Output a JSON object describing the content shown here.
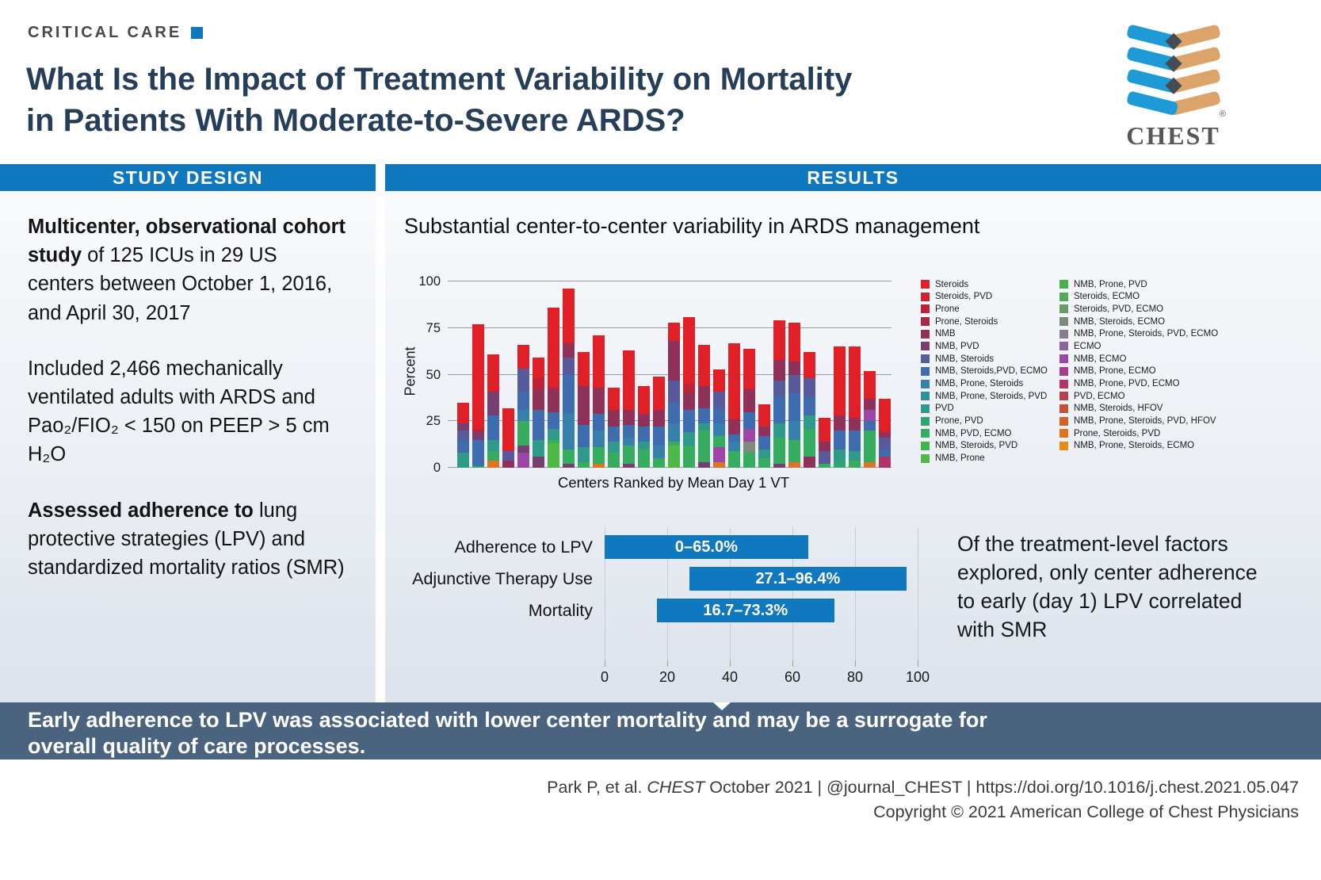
{
  "page": {
    "kicker": "CRITICAL CARE",
    "title_lines": [
      "What Is the Impact of Treatment Variability on Mortality",
      "in Patients With Moderate-to-Severe ARDS?"
    ],
    "logo_text": "CHEST",
    "logo_reg": "®"
  },
  "sections": {
    "study_design_header": "STUDY DESIGN",
    "results_header": "RESULTS"
  },
  "study_design": {
    "paragraphs": [
      {
        "bold": "Multicenter, observational cohort study",
        "rest": " of 125 ICUs in 29 US centers between October 1, 2016, and April 30, 2017"
      },
      {
        "bold": "",
        "rest": "Included 2,466 mechanically ventilated adults with ARDS and Pao₂/FIO₂ < 150 on PEEP > 5 cm H₂O"
      },
      {
        "bold": "Assessed adherence to",
        "rest": " lung protective strategies (LPV) and standardized mortality ratios (SMR)"
      }
    ]
  },
  "results": {
    "chart_title": "Substantial center-to-center variability in ARDS management",
    "conclusion_text": "Of the treatment-level factors explored, only center adherence to early (day 1) LPV correlated with SMR"
  },
  "banner": {
    "lines": [
      "Early adherence to LPV was associated with lower center mortality and may be a surrogate for",
      "overall quality of care processes."
    ]
  },
  "footer": {
    "citation_pre": "Park P, et al. ",
    "citation_journal": "CHEST",
    "citation_post": " October 2021   |   @journal_CHEST   |   https://doi.org/10.1016/j.chest.2021.05.047",
    "copyright": "Copyright © 2021 American College of Chest Physicians"
  },
  "colors": {
    "header_blue": "#0f78be",
    "banner_slate": "#4a6480",
    "range_bar_blue": "#0f78be",
    "title_navy": "#263e57",
    "logo_blue": "#1e9ad6",
    "logo_tan": "#dca36b"
  },
  "chart_data": [
    {
      "type": "stacked-bar",
      "title": "Substantial center-to-center variability in ARDS management",
      "xlabel": "Centers Ranked by Mean Day 1 VT",
      "ylabel": "Percent",
      "ylim": [
        0,
        100
      ],
      "yticks": [
        0,
        25,
        50,
        75,
        100
      ],
      "grid": true,
      "legend_position": "right",
      "n_centers": 29,
      "bar_totals": [
        35,
        77,
        61,
        32,
        66,
        59,
        86,
        96,
        62,
        71,
        43,
        63,
        44,
        49,
        78,
        81,
        66,
        53,
        67,
        64,
        34,
        79,
        78,
        62,
        27,
        65,
        65,
        52,
        37
      ],
      "bars": [
        {
          "segments": [
            [
              "#2f9a8a",
              8
            ],
            [
              "#3f6cae",
              7
            ],
            [
              "#595a9b",
              5
            ],
            [
              "#75406f",
              4
            ],
            [
              "#e01f26",
              11
            ]
          ]
        },
        {
          "segments": [
            [
              "#35ac5e",
              1
            ],
            [
              "#3f6cae",
              14
            ],
            [
              "#75406f",
              4
            ],
            [
              "#bc2339",
              2
            ],
            [
              "#e01f26",
              56
            ]
          ]
        },
        {
          "segments": [
            [
              "#de7423",
              4
            ],
            [
              "#35ac5e",
              5
            ],
            [
              "#2f9a8a",
              6
            ],
            [
              "#3f6cae",
              13
            ],
            [
              "#75406f",
              13
            ],
            [
              "#e01f26",
              20
            ]
          ]
        },
        {
          "segments": [
            [
              "#8f3158",
              4
            ],
            [
              "#595a9b",
              5
            ],
            [
              "#e01f26",
              23
            ]
          ]
        },
        {
          "segments": [
            [
              "#9c46a5",
              8
            ],
            [
              "#75406f",
              4
            ],
            [
              "#35ac5e",
              13
            ],
            [
              "#3780ab",
              6
            ],
            [
              "#3f6cae",
              10
            ],
            [
              "#595a9b",
              12
            ],
            [
              "#e01f26",
              13
            ]
          ]
        },
        {
          "segments": [
            [
              "#75406f",
              6
            ],
            [
              "#2f9a8a",
              9
            ],
            [
              "#3f6cae",
              16
            ],
            [
              "#8f3158",
              11
            ],
            [
              "#bc2339",
              6
            ],
            [
              "#e01f26",
              11
            ]
          ]
        },
        {
          "segments": [
            [
              "#4eba45",
              13
            ],
            [
              "#35ac5e",
              2
            ],
            [
              "#2f9a8a",
              6
            ],
            [
              "#3f6cae",
              9
            ],
            [
              "#8f3158",
              12
            ],
            [
              "#bc2339",
              1
            ],
            [
              "#e01f26",
              43
            ]
          ]
        },
        {
          "segments": [
            [
              "#75406f",
              2
            ],
            [
              "#35ac5e",
              8
            ],
            [
              "#3780ab",
              19
            ],
            [
              "#3f6cae",
              21
            ],
            [
              "#595a9b",
              9
            ],
            [
              "#8f3158",
              8
            ],
            [
              "#e01f26",
              29
            ]
          ]
        },
        {
          "segments": [
            [
              "#35ac5e",
              3
            ],
            [
              "#2f9a8a",
              8
            ],
            [
              "#3f6cae",
              12
            ],
            [
              "#8f3158",
              21
            ],
            [
              "#e01f26",
              18
            ]
          ]
        },
        {
          "segments": [
            [
              "#de7423",
              2
            ],
            [
              "#35ac5e",
              9
            ],
            [
              "#3780ab",
              9
            ],
            [
              "#3f6cae",
              9
            ],
            [
              "#8f3158",
              14
            ],
            [
              "#e01f26",
              28
            ]
          ]
        },
        {
          "segments": [
            [
              "#35ac5e",
              8
            ],
            [
              "#2f9a8a",
              6
            ],
            [
              "#3f6cae",
              8
            ],
            [
              "#8f3158",
              9
            ],
            [
              "#e01f26",
              12
            ]
          ]
        },
        {
          "segments": [
            [
              "#75406f",
              2
            ],
            [
              "#35ac5e",
              10
            ],
            [
              "#3780ab",
              4
            ],
            [
              "#3f6cae",
              7
            ],
            [
              "#8f3158",
              8
            ],
            [
              "#e01f26",
              32
            ]
          ]
        },
        {
          "segments": [
            [
              "#35ac5e",
              10
            ],
            [
              "#2f9a8a",
              4
            ],
            [
              "#3f6cae",
              8
            ],
            [
              "#8f3158",
              7
            ],
            [
              "#e01f26",
              15
            ]
          ]
        },
        {
          "segments": [
            [
              "#35ac5e",
              5
            ],
            [
              "#3780ab",
              7
            ],
            [
              "#3f6cae",
              10
            ],
            [
              "#8f3158",
              9
            ],
            [
              "#e01f26",
              18
            ]
          ]
        },
        {
          "segments": [
            [
              "#4eba45",
              12
            ],
            [
              "#35ac5e",
              2
            ],
            [
              "#3780ab",
              10
            ],
            [
              "#3f6cae",
              11
            ],
            [
              "#595a9b",
              12
            ],
            [
              "#8f3158",
              21
            ],
            [
              "#e01f26",
              10
            ]
          ]
        },
        {
          "segments": [
            [
              "#35ac5e",
              12
            ],
            [
              "#2f9a8a",
              7
            ],
            [
              "#3f6cae",
              12
            ],
            [
              "#8f3158",
              9
            ],
            [
              "#bc2339",
              5
            ],
            [
              "#e01f26",
              36
            ]
          ]
        },
        {
          "segments": [
            [
              "#75406f",
              3
            ],
            [
              "#35ac5e",
              17
            ],
            [
              "#2f9a8a",
              4
            ],
            [
              "#3f6cae",
              8
            ],
            [
              "#8f3158",
              12
            ],
            [
              "#e01f26",
              22
            ]
          ]
        },
        {
          "segments": [
            [
              "#de7423",
              3
            ],
            [
              "#9c46a5",
              8
            ],
            [
              "#35ac5e",
              6
            ],
            [
              "#3780ab",
              7
            ],
            [
              "#3f6cae",
              8
            ],
            [
              "#595a9b",
              9
            ],
            [
              "#e01f26",
              12
            ]
          ]
        },
        {
          "segments": [
            [
              "#35ac5e",
              9
            ],
            [
              "#3780ab",
              5
            ],
            [
              "#3f6cae",
              4
            ],
            [
              "#8f3158",
              8
            ],
            [
              "#e01f26",
              41
            ]
          ]
        },
        {
          "segments": [
            [
              "#35ac5e",
              8
            ],
            [
              "#7c8c78",
              6
            ],
            [
              "#9c46a5",
              7
            ],
            [
              "#3f6cae",
              9
            ],
            [
              "#8f3158",
              12
            ],
            [
              "#e01f26",
              22
            ]
          ]
        },
        {
          "segments": [
            [
              "#35ac5e",
              5
            ],
            [
              "#2f9a8a",
              5
            ],
            [
              "#3f6cae",
              7
            ],
            [
              "#8f3158",
              5
            ],
            [
              "#e01f26",
              12
            ]
          ]
        },
        {
          "segments": [
            [
              "#75406f",
              2
            ],
            [
              "#35ac5e",
              14
            ],
            [
              "#2f9a8a",
              8
            ],
            [
              "#3f6cae",
              14
            ],
            [
              "#595a9b",
              9
            ],
            [
              "#8f3158",
              11
            ],
            [
              "#e01f26",
              21
            ]
          ]
        },
        {
          "segments": [
            [
              "#de7423",
              3
            ],
            [
              "#35ac5e",
              12
            ],
            [
              "#3780ab",
              10
            ],
            [
              "#3f6cae",
              15
            ],
            [
              "#595a9b",
              10
            ],
            [
              "#8f3158",
              7
            ],
            [
              "#e01f26",
              21
            ]
          ]
        },
        {
          "segments": [
            [
              "#8f3158",
              6
            ],
            [
              "#35ac5e",
              15
            ],
            [
              "#2f9a8a",
              7
            ],
            [
              "#3f6cae",
              10
            ],
            [
              "#595a9b",
              10
            ],
            [
              "#e01f26",
              14
            ]
          ]
        },
        {
          "segments": [
            [
              "#35ac5e",
              2
            ],
            [
              "#595a9b",
              7
            ],
            [
              "#8f3158",
              5
            ],
            [
              "#e01f26",
              13
            ]
          ]
        },
        {
          "segments": [
            [
              "#31a472",
              4
            ],
            [
              "#2f9a8a",
              6
            ],
            [
              "#3f6cae",
              10
            ],
            [
              "#8f3158",
              8
            ],
            [
              "#e01f26",
              37
            ]
          ]
        },
        {
          "segments": [
            [
              "#35ac5e",
              4
            ],
            [
              "#2f9a8a",
              5
            ],
            [
              "#3f6cae",
              11
            ],
            [
              "#8f3158",
              7
            ],
            [
              "#e01f26",
              38
            ]
          ]
        },
        {
          "segments": [
            [
              "#de7423",
              3
            ],
            [
              "#35ac5e",
              17
            ],
            [
              "#3f6cae",
              5
            ],
            [
              "#9c46a5",
              6
            ],
            [
              "#8f3158",
              6
            ],
            [
              "#e01f26",
              15
            ]
          ]
        },
        {
          "segments": [
            [
              "#b13467",
              6
            ],
            [
              "#3f6cae",
              4
            ],
            [
              "#595a9b",
              6
            ],
            [
              "#8f3158",
              3
            ],
            [
              "#e01f26",
              18
            ]
          ]
        }
      ],
      "legend_col1": [
        {
          "label": "Steroids",
          "color": "#e01f26"
        },
        {
          "label": "Steroids, PVD",
          "color": "#cf2130"
        },
        {
          "label": "Prone",
          "color": "#bc2339"
        },
        {
          "label": "Prone, Steroids",
          "color": "#a62a47"
        },
        {
          "label": "NMB",
          "color": "#8f3158"
        },
        {
          "label": "NMB, PVD",
          "color": "#75406f"
        },
        {
          "label": "NMB, Steroids",
          "color": "#595a9b"
        },
        {
          "label": "NMB, Steroids,PVD, ECMO",
          "color": "#3f6cae"
        },
        {
          "label": "NMB, Prone, Steroids",
          "color": "#3780ab"
        },
        {
          "label": "NMB, Prone, Steroids, PVD",
          "color": "#318fa0"
        },
        {
          "label": "PVD",
          "color": "#2f9a8a"
        },
        {
          "label": "Prone, PVD",
          "color": "#31a472"
        },
        {
          "label": "NMB, PVD, ECMO",
          "color": "#35ac5e"
        },
        {
          "label": "NMB, Steroids, PVD",
          "color": "#3fb34f"
        },
        {
          "label": "NMB, Prone",
          "color": "#4eba45"
        }
      ],
      "legend_col2": [
        {
          "label": "NMB, Prone, PVD",
          "color": "#47b14b"
        },
        {
          "label": "Steroids, ECMO",
          "color": "#55a759"
        },
        {
          "label": "Steroids, PVD, ECMO",
          "color": "#699a68"
        },
        {
          "label": "NMB, Steroids, ECMO",
          "color": "#7c8c78"
        },
        {
          "label": "NMB, Prone, Steroids, PVD, ECMO",
          "color": "#847e8d"
        },
        {
          "label": "ECMO",
          "color": "#8a63a5"
        },
        {
          "label": "NMB, ECMO",
          "color": "#9c46a5"
        },
        {
          "label": "NMB, Prone, ECMO",
          "color": "#a93a8c"
        },
        {
          "label": "NMB, Prone, PVD, ECMO",
          "color": "#b13467"
        },
        {
          "label": "PVD, ECMO",
          "color": "#b9404b"
        },
        {
          "label": "NMB, Steroids, HFOV",
          "color": "#c65038"
        },
        {
          "label": "NMB, Prone, Steroids, PVD, HFOV",
          "color": "#d2622c"
        },
        {
          "label": "Prone, Steroids, PVD",
          "color": "#de7423"
        },
        {
          "label": "NMB, Prone, Steroids, ECMO",
          "color": "#ea8a1a"
        }
      ]
    },
    {
      "type": "range-bar",
      "xlim": [
        0,
        100
      ],
      "xticks": [
        0,
        20,
        40,
        60,
        80,
        100
      ],
      "bar_color": "#0f78be",
      "rows": [
        {
          "label": "Adherence to LPV",
          "range_label": "0–65.0%",
          "start": 0,
          "end": 65.0
        },
        {
          "label": "Adjunctive Therapy Use",
          "range_label": "27.1–96.4%",
          "start": 27.1,
          "end": 96.4
        },
        {
          "label": "Mortality",
          "range_label": "16.7–73.3%",
          "start": 16.7,
          "end": 73.3
        }
      ]
    }
  ]
}
